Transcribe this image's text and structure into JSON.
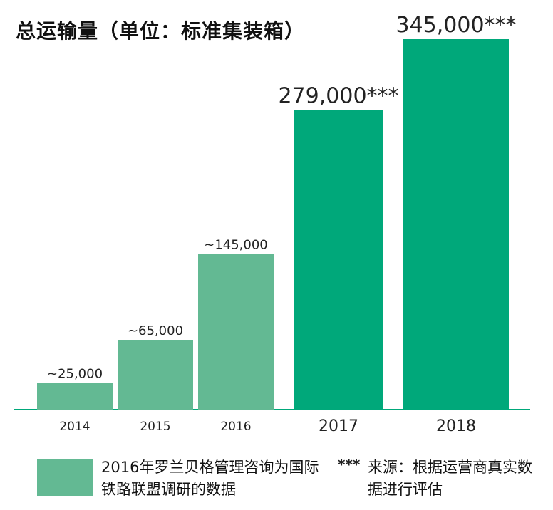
{
  "title": "总运输量（单位：标准集装箱）",
  "colors": {
    "estimated": "#63b993",
    "operator": "#00a87a",
    "axis": "#00a87a"
  },
  "legend": {
    "estimated_label": "2016年罗兰贝格管理咨询为国际铁路联盟调研的数据",
    "operator_mark": "***",
    "operator_label": "来源：根据运营商真实数据进行评估"
  },
  "chart_data": {
    "type": "bar",
    "title": "总运输量（单位：标准集装箱）",
    "categories": [
      "2014",
      "2015",
      "2016",
      "2017",
      "2018"
    ],
    "values": [
      25000,
      65000,
      145000,
      279000,
      345000
    ],
    "data_labels": [
      "~25,000",
      "~65,000",
      "~145,000",
      "279,000***",
      "345,000***"
    ],
    "source": [
      "estimated",
      "estimated",
      "estimated",
      "operator",
      "operator"
    ],
    "xlabel": "",
    "ylabel": "",
    "ylim": [
      0,
      345000
    ],
    "grid": false,
    "legend_position": "bottom"
  }
}
